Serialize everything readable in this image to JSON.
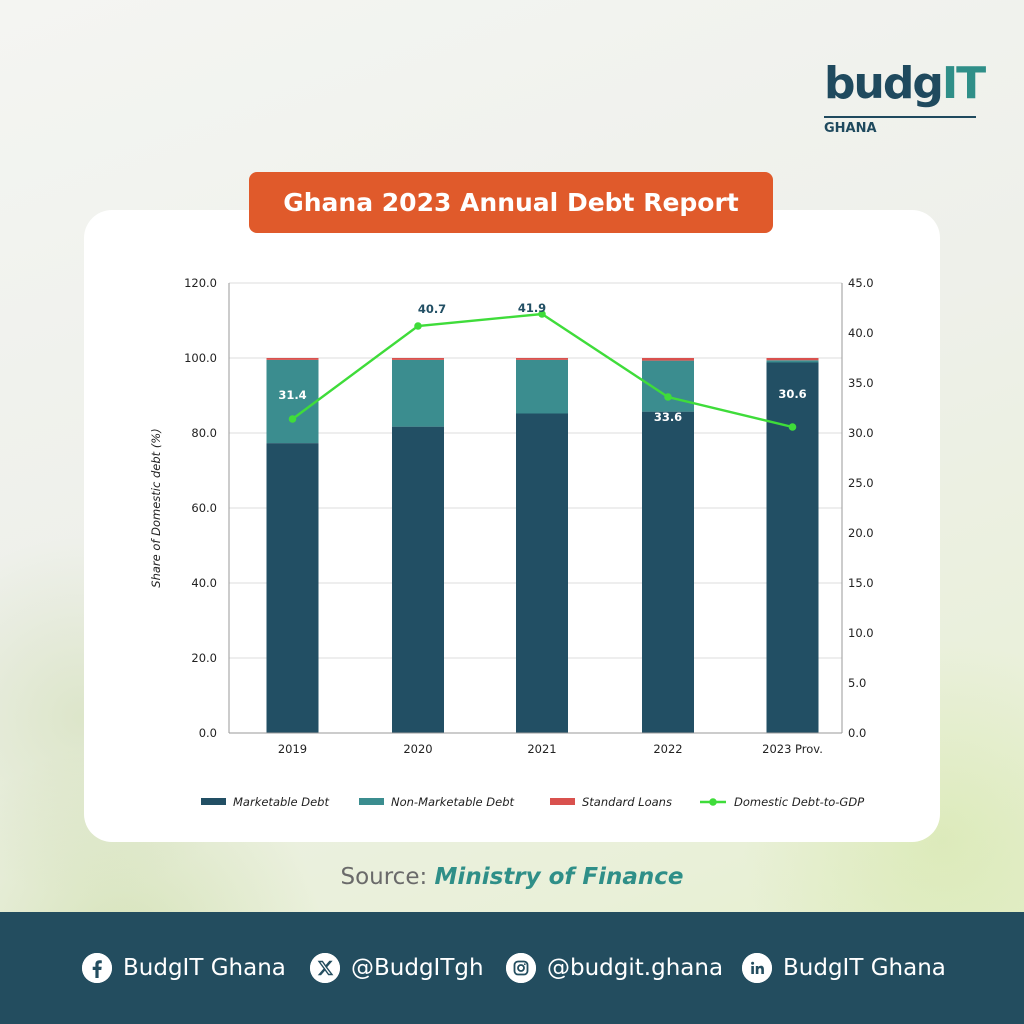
{
  "logo": {
    "main": "budg",
    "accent": "IT",
    "sub": "GHANA"
  },
  "title": "Ghana 2023 Annual Debt Report",
  "source": {
    "label": "Source:",
    "name": "Ministry of Finance"
  },
  "social": [
    {
      "icon": "facebook-icon",
      "text": "BudgIT Ghana"
    },
    {
      "icon": "x-icon",
      "text": "@BudgITgh"
    },
    {
      "icon": "instagram-icon",
      "text": "@budgit.ghana"
    },
    {
      "icon": "linkedin-icon",
      "text": "BudgIT Ghana"
    }
  ],
  "colors": {
    "marketable": "#224f64",
    "non_marketable": "#3b8d8f",
    "standard": "#d9514e",
    "line": "#3fdc3a",
    "title_bg": "#e05a2b",
    "footer_bg": "#234d5f"
  },
  "chart_data": {
    "type": "bar",
    "stacked": true,
    "categories": [
      "2019",
      "2020",
      "2021",
      "2022",
      "2023 Prov."
    ],
    "ylabel": "Share of Domestic debt (%)",
    "ylim": [
      0,
      120
    ],
    "yticks": [
      "0.0",
      "20.0",
      "40.0",
      "60.0",
      "80.0",
      "100.0",
      "120.0"
    ],
    "y2lim": [
      0,
      45
    ],
    "y2ticks": [
      "0.0",
      "5.0",
      "10.0",
      "15.0",
      "20.0",
      "25.0",
      "30.0",
      "35.0",
      "40.0",
      "45.0"
    ],
    "grid": true,
    "legend_position": "bottom",
    "series": [
      {
        "name": "Marketable Debt",
        "type": "bar",
        "values": [
          77.3,
          81.7,
          85.2,
          85.7,
          98.8
        ]
      },
      {
        "name": "Non-Marketable Debt",
        "type": "bar",
        "values": [
          22.2,
          17.8,
          14.3,
          13.6,
          0.6
        ]
      },
      {
        "name": "Standard Loans",
        "type": "bar",
        "values": [
          0.5,
          0.5,
          0.5,
          0.7,
          0.6
        ]
      },
      {
        "name": "Domestic Debt-to-GDP",
        "type": "line",
        "axis": "right",
        "values": [
          31.4,
          40.7,
          41.9,
          33.6,
          30.6
        ],
        "labels": [
          "31.4",
          "40.7",
          "41.9",
          "33.6",
          "30.6"
        ]
      }
    ]
  }
}
